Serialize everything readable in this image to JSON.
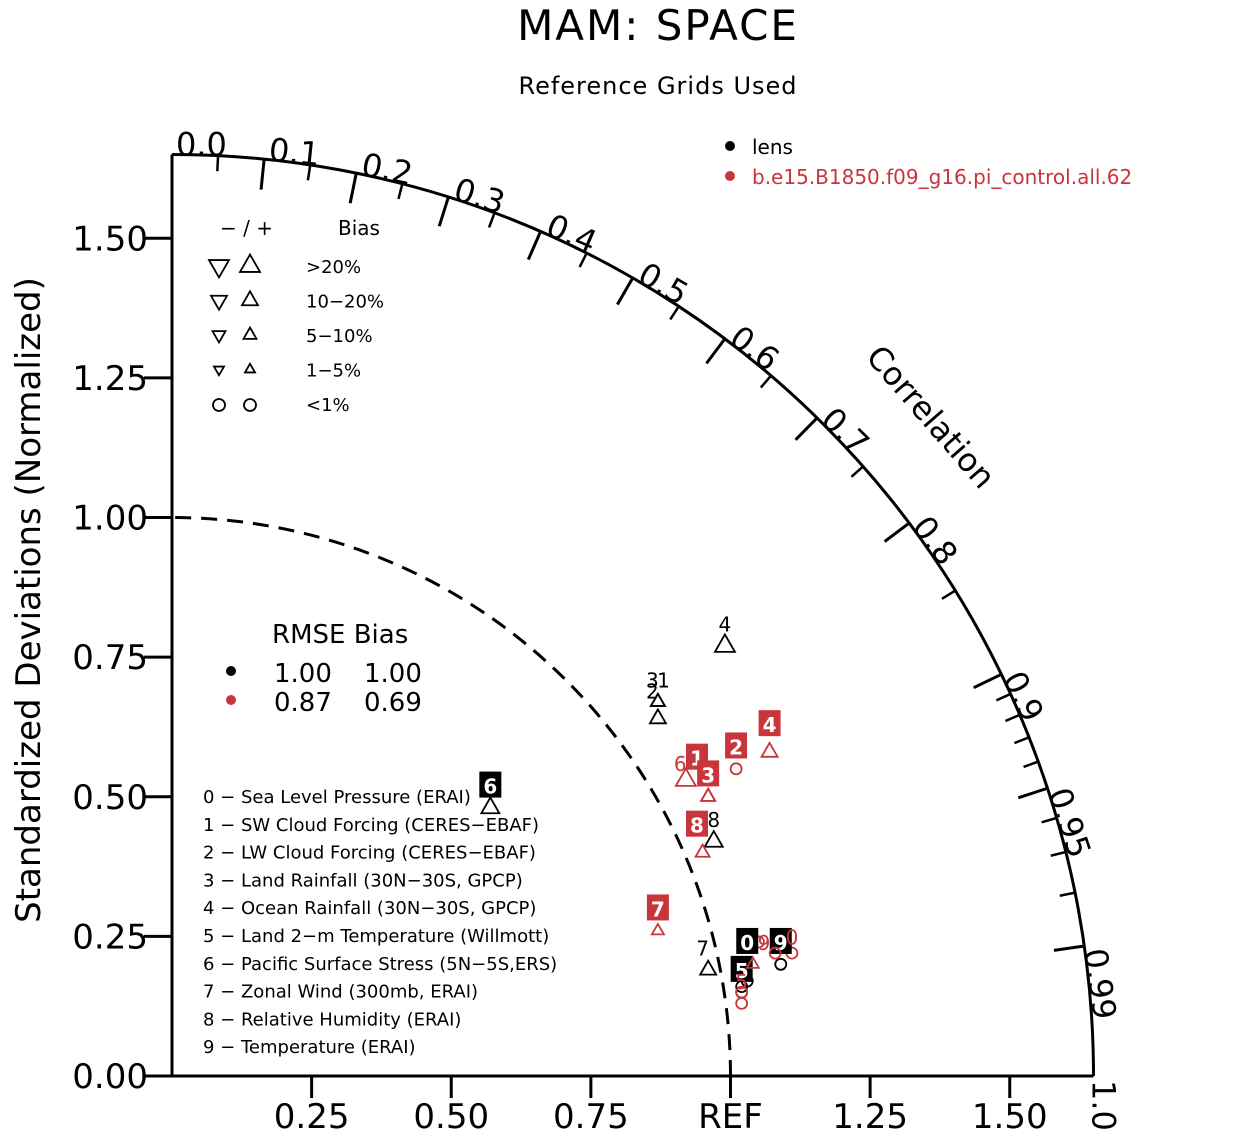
{
  "chart_data": {
    "type": "scatter",
    "subtype": "taylor-diagram",
    "title": "MAM: SPACE",
    "subtitle": "Reference Grids Used",
    "ylabel": "Standardized Deviations (Normalized)",
    "corr_axis_label": "Correlation",
    "ref_label": "REF",
    "std_range": [
      0,
      1.65
    ],
    "std_ticks": [
      "0.00",
      "0.25",
      "0.50",
      "0.75",
      "1.00",
      "1.25",
      "1.50"
    ],
    "x_tick_labels": [
      "0.25",
      "0.50",
      "0.75",
      "REF",
      "1.25",
      "1.50"
    ],
    "corr_ticks": [
      "0.0",
      "0.1",
      "0.2",
      "0.3",
      "0.4",
      "0.5",
      "0.6",
      "0.7",
      "0.8",
      "0.9",
      "0.95",
      "0.99",
      "1.0"
    ],
    "series": [
      {
        "name": "lens",
        "color": "#000000",
        "rmse": "1.00",
        "bias": "1.00",
        "points": [
          {
            "id": "0",
            "x": 1.03,
            "y": 0.17,
            "marker": "circle",
            "boxed": true,
            "lx": 1.03,
            "ly": 0.24
          },
          {
            "id": "1",
            "x": 0.87,
            "y": 0.67,
            "marker": "triangle-up",
            "size": 0.7,
            "boxed": false,
            "lx": 0.88,
            "ly": 0.71
          },
          {
            "id": "2",
            "x": 0.87,
            "y": 0.64,
            "marker": "triangle-up",
            "size": 0.8,
            "boxed": false,
            "lx": 0.86,
            "ly": 0.69
          },
          {
            "id": "3",
            "x": 0.87,
            "y": 0.67,
            "marker": "triangle-up",
            "size": 0.7,
            "boxed": false,
            "lx": 0.86,
            "ly": 0.71
          },
          {
            "id": "4",
            "x": 0.99,
            "y": 0.77,
            "marker": "triangle-up",
            "size": 1.0,
            "boxed": false,
            "lx": 0.99,
            "ly": 0.81
          },
          {
            "id": "5",
            "x": 1.02,
            "y": 0.15,
            "marker": "circle",
            "boxed": true,
            "lx": 1.02,
            "ly": 0.19
          },
          {
            "id": "6",
            "x": 0.57,
            "y": 0.48,
            "marker": "triangle-up",
            "size": 0.9,
            "boxed": true,
            "lx": 0.57,
            "ly": 0.52
          },
          {
            "id": "7",
            "x": 0.96,
            "y": 0.19,
            "marker": "triangle-up",
            "size": 0.8,
            "boxed": false,
            "lx": 0.95,
            "ly": 0.23
          },
          {
            "id": "8",
            "x": 0.97,
            "y": 0.42,
            "marker": "triangle-up",
            "size": 0.9,
            "boxed": false,
            "lx": 0.97,
            "ly": 0.46
          },
          {
            "id": "9",
            "x": 1.09,
            "y": 0.2,
            "marker": "circle",
            "boxed": true,
            "lx": 1.09,
            "ly": 0.24
          }
        ]
      },
      {
        "name": "b.e15.B1850.f09_g16.pi_control.all.62",
        "color": "#c8353a",
        "rmse": "0.87",
        "bias": "0.69",
        "points": [
          {
            "id": "0",
            "x": 1.08,
            "y": 0.22,
            "marker": "circle",
            "boxed": false,
            "lx": 1.11,
            "ly": 0.25
          },
          {
            "id": "1",
            "x": 0.96,
            "y": 0.5,
            "marker": "triangle-up",
            "size": 0.7,
            "boxed": true,
            "lx": 0.94,
            "ly": 0.57
          },
          {
            "id": "2",
            "x": 1.01,
            "y": 0.55,
            "marker": "circle",
            "boxed": true,
            "lx": 1.01,
            "ly": 0.59
          },
          {
            "id": "3",
            "x": 0.96,
            "y": 0.5,
            "marker": "triangle-up",
            "size": 0.7,
            "boxed": true,
            "lx": 0.96,
            "ly": 0.54
          },
          {
            "id": "4",
            "x": 1.07,
            "y": 0.58,
            "marker": "triangle-up",
            "size": 0.8,
            "boxed": true,
            "lx": 1.07,
            "ly": 0.63
          },
          {
            "id": "5",
            "x": 1.02,
            "y": 0.15,
            "marker": "circle",
            "boxed": false,
            "lx": 1.02,
            "ly": 0.17
          },
          {
            "id": "6",
            "x": 0.92,
            "y": 0.53,
            "marker": "triangle-up",
            "size": 1.0,
            "boxed": false,
            "lx": 0.91,
            "ly": 0.56
          },
          {
            "id": "7",
            "x": 0.87,
            "y": 0.26,
            "marker": "triangle-up",
            "size": 0.6,
            "boxed": true,
            "lx": 0.87,
            "ly": 0.3
          },
          {
            "id": "8",
            "x": 0.95,
            "y": 0.4,
            "marker": "triangle-up",
            "size": 0.7,
            "boxed": true,
            "lx": 0.94,
            "ly": 0.45
          },
          {
            "id": "9",
            "x": 1.04,
            "y": 0.2,
            "marker": "triangle-up",
            "size": 0.6,
            "boxed": false,
            "lx": 1.06,
            "ly": 0.24
          }
        ]
      }
    ],
    "extra_marks": [
      {
        "series": 0,
        "marker": "circle",
        "x": 1.02,
        "y": 0.16
      },
      {
        "series": 1,
        "marker": "circle",
        "x": 1.02,
        "y": 0.13
      },
      {
        "series": 1,
        "marker": "circle",
        "x": 1.05,
        "y": 0.24
      },
      {
        "series": 1,
        "marker": "circle",
        "x": 1.11,
        "y": 0.22
      }
    ],
    "stats_header": "RMSE Bias",
    "bias_legend": {
      "header_sign": "− / +",
      "header_label": "Bias",
      "rows": [
        {
          "label": ">20%",
          "marker": "triangle"
        },
        {
          "label": "10−20%",
          "marker": "triangle"
        },
        {
          "label": "5−10%",
          "marker": "triangle"
        },
        {
          "label": "1−5%",
          "marker": "triangle"
        },
        {
          "label": "<1%",
          "marker": "circle"
        }
      ]
    },
    "variables": [
      "0 − Sea Level Pressure (ERAI)",
      "1 − SW Cloud Forcing (CERES−EBAF)",
      "2 − LW Cloud Forcing (CERES−EBAF)",
      "3 − Land Rainfall (30N−30S, GPCP)",
      "4 − Ocean Rainfall (30N−30S, GPCP)",
      "5 − Land 2−m Temperature (Willmott)",
      "6 − Pacific Surface Stress (5N−5S,ERS)",
      "7 − Zonal Wind (300mb, ERAI)",
      "8 − Relative Humidity (ERAI)",
      "9 − Temperature (ERAI)"
    ],
    "grid": false,
    "legend_position": "top-right"
  }
}
